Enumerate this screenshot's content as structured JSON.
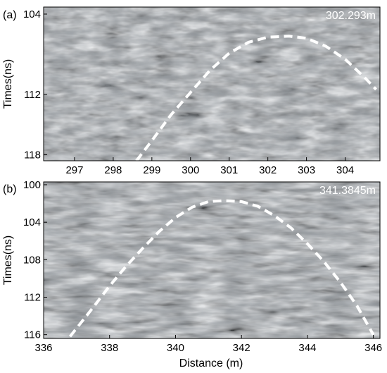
{
  "chart_data": [
    {
      "type": "heatmap",
      "panel_label": "(a)",
      "annotation": "302.293m",
      "ylabel": "Times(ns)",
      "xlabel": "",
      "xlim": [
        296.2,
        304.9
      ],
      "ylim": [
        103.3,
        118.6
      ],
      "x_ticks": [
        297,
        298,
        299,
        300,
        301,
        302,
        303,
        304
      ],
      "y_ticks": [
        104,
        112,
        118
      ],
      "hyperbola": {
        "apex_x": 302.55,
        "apex_y": 106.2,
        "x": [
          298.6,
          299.0,
          299.5,
          300.0,
          300.5,
          301.0,
          301.5,
          302.0,
          302.55,
          303.0,
          303.5,
          304.0,
          304.5,
          304.8
        ],
        "y": [
          118.6,
          116.6,
          114.0,
          111.8,
          109.6,
          107.9,
          106.8,
          106.3,
          106.2,
          106.4,
          107.2,
          108.5,
          110.3,
          111.5
        ]
      }
    },
    {
      "type": "heatmap",
      "panel_label": "(b)",
      "annotation": "341.3845m",
      "ylabel": "Times(ns)",
      "xlabel": "Distance (m)",
      "xlim": [
        336,
        346.2
      ],
      "ylim": [
        99.7,
        116.4
      ],
      "x_ticks": [
        336,
        338,
        340,
        342,
        344,
        346
      ],
      "y_ticks": [
        100,
        104,
        108,
        112,
        116
      ],
      "hyperbola": {
        "apex_x": 341.5,
        "apex_y": 101.7,
        "x": [
          336.8,
          337.5,
          338.0,
          338.5,
          339.0,
          339.5,
          340.0,
          340.5,
          341.0,
          341.5,
          342.0,
          342.5,
          343.0,
          343.5,
          344.0,
          344.5,
          345.0,
          345.5,
          346.0
        ],
        "y": [
          116.2,
          113.1,
          110.8,
          108.7,
          106.8,
          105.0,
          103.5,
          102.4,
          101.8,
          101.7,
          101.8,
          102.3,
          103.3,
          104.6,
          106.3,
          108.2,
          110.4,
          112.9,
          116.0
        ]
      }
    }
  ]
}
